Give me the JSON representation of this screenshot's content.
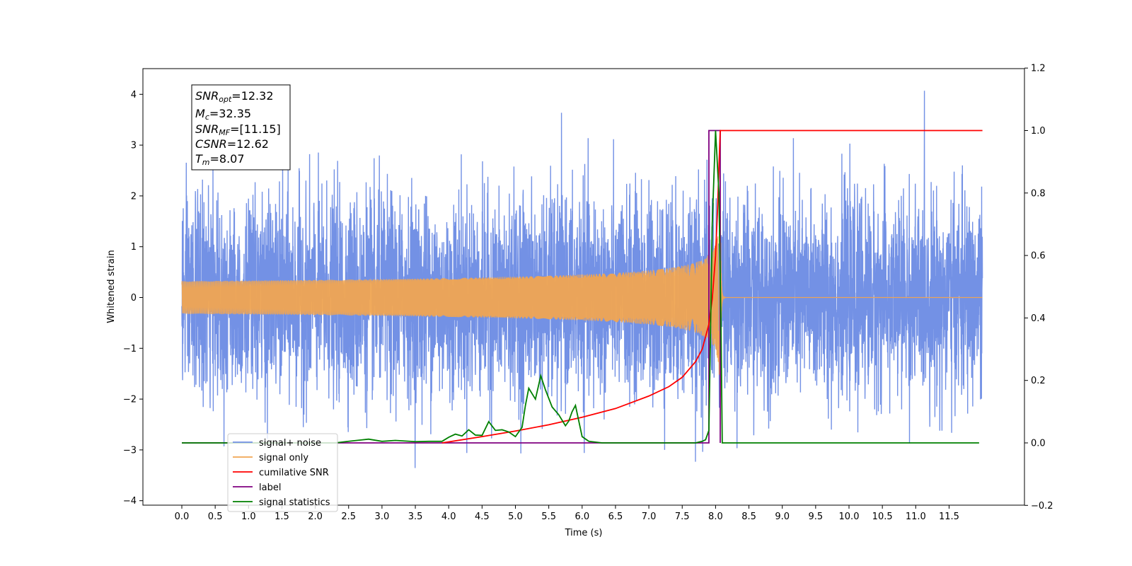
{
  "chart_data": {
    "type": "line",
    "xlabel": "Time (s)",
    "ylabel": "Whitened strain",
    "xlim": [
      -0.6,
      12.6
    ],
    "ylim": [
      -4.1,
      4.5
    ],
    "ylim_right": [
      -0.2,
      1.2
    ],
    "x_ticks": [
      "0.0",
      "0.5",
      "1.0",
      "1.5",
      "2.0",
      "2.5",
      "3.0",
      "3.5",
      "4.0",
      "4.5",
      "5.0",
      "5.5",
      "6.0",
      "6.5",
      "7.0",
      "7.5",
      "8.0",
      "8.5",
      "9.0",
      "9.5",
      "10.0",
      "10.5",
      "11.0",
      "11.5"
    ],
    "y_ticks_left": [
      "−4",
      "−3",
      "−2",
      "−1",
      "0",
      "1",
      "2",
      "3",
      "4"
    ],
    "y_ticks_right": [
      "−0.2",
      "0.0",
      "0.2",
      "0.4",
      "0.6",
      "0.8",
      "1.0",
      "1.2"
    ],
    "grid": false,
    "legend_placement": "lower-left",
    "series": [
      {
        "name": "signal+ noise",
        "axis": "left",
        "color": "#7391e5",
        "description_values": "white noise roughly between -2.3 and 2.5 (extremes -3.7 to 4.1) from 0 to 12 s, with chirp merger peak near 8.0 s"
      },
      {
        "name": "signal only",
        "axis": "left",
        "color": "#f0a552",
        "chirp": {
          "start": 0.0,
          "merger": 8.07,
          "end": 12.0,
          "peak_amplitude": 2.4
        }
      },
      {
        "name": "cumilative SNR",
        "axis": "right",
        "color": "#ff0000",
        "x": [
          3.9,
          4.5,
          5.0,
          5.5,
          6.0,
          6.5,
          7.0,
          7.3,
          7.5,
          7.7,
          7.8,
          7.9,
          7.95,
          8.0,
          8.03,
          8.05,
          8.07,
          8.1,
          12.0
        ],
        "y": [
          0.0,
          0.02,
          0.038,
          0.058,
          0.082,
          0.11,
          0.15,
          0.18,
          0.21,
          0.26,
          0.3,
          0.38,
          0.46,
          0.6,
          0.75,
          0.88,
          1.0,
          1.0,
          1.0
        ]
      },
      {
        "name": "label",
        "axis": "right",
        "color": "#800080",
        "x": [
          0.0,
          7.9,
          7.9,
          8.07,
          8.07
        ],
        "y": [
          0.0,
          0.0,
          1.0,
          1.0,
          0.0
        ]
      },
      {
        "name": "signal statistics",
        "axis": "right",
        "color": "#008000",
        "x": [
          0.0,
          2.3,
          2.5,
          2.8,
          3.0,
          3.2,
          3.5,
          3.7,
          3.9,
          4.0,
          4.1,
          4.2,
          4.3,
          4.4,
          4.5,
          4.6,
          4.7,
          4.8,
          4.9,
          5.0,
          5.1,
          5.15,
          5.2,
          5.3,
          5.38,
          5.45,
          5.55,
          5.65,
          5.75,
          5.8,
          5.85,
          5.9,
          6.0,
          6.1,
          6.3,
          7.7,
          7.8,
          7.85,
          7.9,
          7.95,
          8.0,
          8.05,
          8.08,
          8.1,
          8.15,
          11.95
        ],
        "y": [
          0.0,
          0.0,
          0.005,
          0.012,
          0.005,
          0.008,
          0.004,
          0.005,
          0.005,
          0.018,
          0.028,
          0.022,
          0.042,
          0.025,
          0.024,
          0.068,
          0.04,
          0.042,
          0.035,
          0.02,
          0.05,
          0.12,
          0.175,
          0.14,
          0.215,
          0.17,
          0.115,
          0.09,
          0.055,
          0.07,
          0.1,
          0.12,
          0.02,
          0.005,
          0.0,
          0.0,
          0.005,
          0.01,
          0.04,
          0.7,
          1.0,
          0.8,
          0.4,
          0.0,
          0.0,
          0.0
        ]
      }
    ],
    "annotation": {
      "lines": [
        {
          "base": "SNR",
          "sub": "opt",
          "value": "=12.32"
        },
        {
          "base": "M",
          "sub": "c",
          "value": "=32.35"
        },
        {
          "base": "SNR",
          "sub": "MF",
          "value": "=[11.15]"
        },
        {
          "base": "CSNR",
          "sub": "",
          "value": "=12.62"
        },
        {
          "base": "T",
          "sub": "m",
          "value": "=8.07"
        }
      ]
    }
  }
}
